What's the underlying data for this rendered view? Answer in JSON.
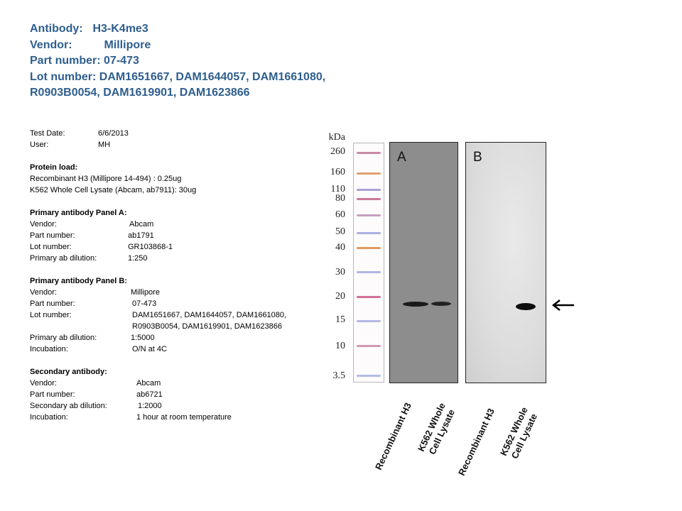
{
  "header": {
    "antibody_label": "Antibody:",
    "antibody_value": "H3-K4me3",
    "vendor_label": "Vendor:",
    "vendor_value": "Millipore",
    "part_label": "Part number:",
    "part_value": "07-473",
    "lot_label": "Lot number:",
    "lot_value_line1": "DAM1651667, DAM1644057, DAM1661080,",
    "lot_value_line2": "R0903B0054, DAM1619901, DAM1623866"
  },
  "test": {
    "date_label": "Test Date:",
    "date_value": "6/6/2013",
    "user_label": "User:",
    "user_value": "MH"
  },
  "protein_load": {
    "title": "Protein load:",
    "line1": "Recombinant H3 (Millipore 14-494) : 0.25ug",
    "line2": "K562 Whole Cell Lysate (Abcam, ab7911): 30ug"
  },
  "panel_a": {
    "title": "Primary antibody  Panel A:",
    "vendor_label": "Vendor:",
    "vendor_value": "Abcam",
    "part_label": "Part number:",
    "part_value": "ab1791",
    "lot_label": "Lot number:",
    "lot_value": "GR103868-1",
    "dilution_label": "Primary ab dilution:",
    "dilution_value": "1:250"
  },
  "panel_b": {
    "title": "Primary antibody  Panel B:",
    "vendor_label": "Vendor:",
    "vendor_value": "Millipore",
    "part_label": "Part number:",
    "part_value": "07-473",
    "lot_label": "Lot number:",
    "lot_value_line1": "DAM1651667, DAM1644057, DAM1661080,",
    "lot_value_line2": "R0903B0054, DAM1619901, DAM1623866",
    "dilution_label": "Primary ab dilution:",
    "dilution_value": "1:5000",
    "incubation_label": "Incubation:",
    "incubation_value": "O/N at 4C"
  },
  "secondary": {
    "title": "Secondary antibody:",
    "vendor_label": "Vendor:",
    "vendor_value": "Abcam",
    "part_label": "Part number:",
    "part_value": "ab6721",
    "dilution_label": "Secondary ab dilution:",
    "dilution_value": "1:2000",
    "incubation_label": "Incubation:",
    "incubation_value": "1 hour at room temperature"
  },
  "blot": {
    "kda_label": "kDa",
    "markers": [
      "260",
      "160",
      "110",
      "80",
      "60",
      "50",
      "40",
      "30",
      "20",
      "15",
      "10",
      "3.5"
    ],
    "panel_a_label": "A",
    "panel_b_label": "B",
    "lane1_label": "Recombinant  H3",
    "lane2_label_line1": "K562 Whole",
    "lane2_label_line2": "Cell Lysate",
    "lane3_label": "Recombinant  H3",
    "lane4_label_line1": "K562 Whole",
    "lane4_label_line2": "Cell Lysate",
    "arrow_icon": "left-arrow-icon"
  }
}
